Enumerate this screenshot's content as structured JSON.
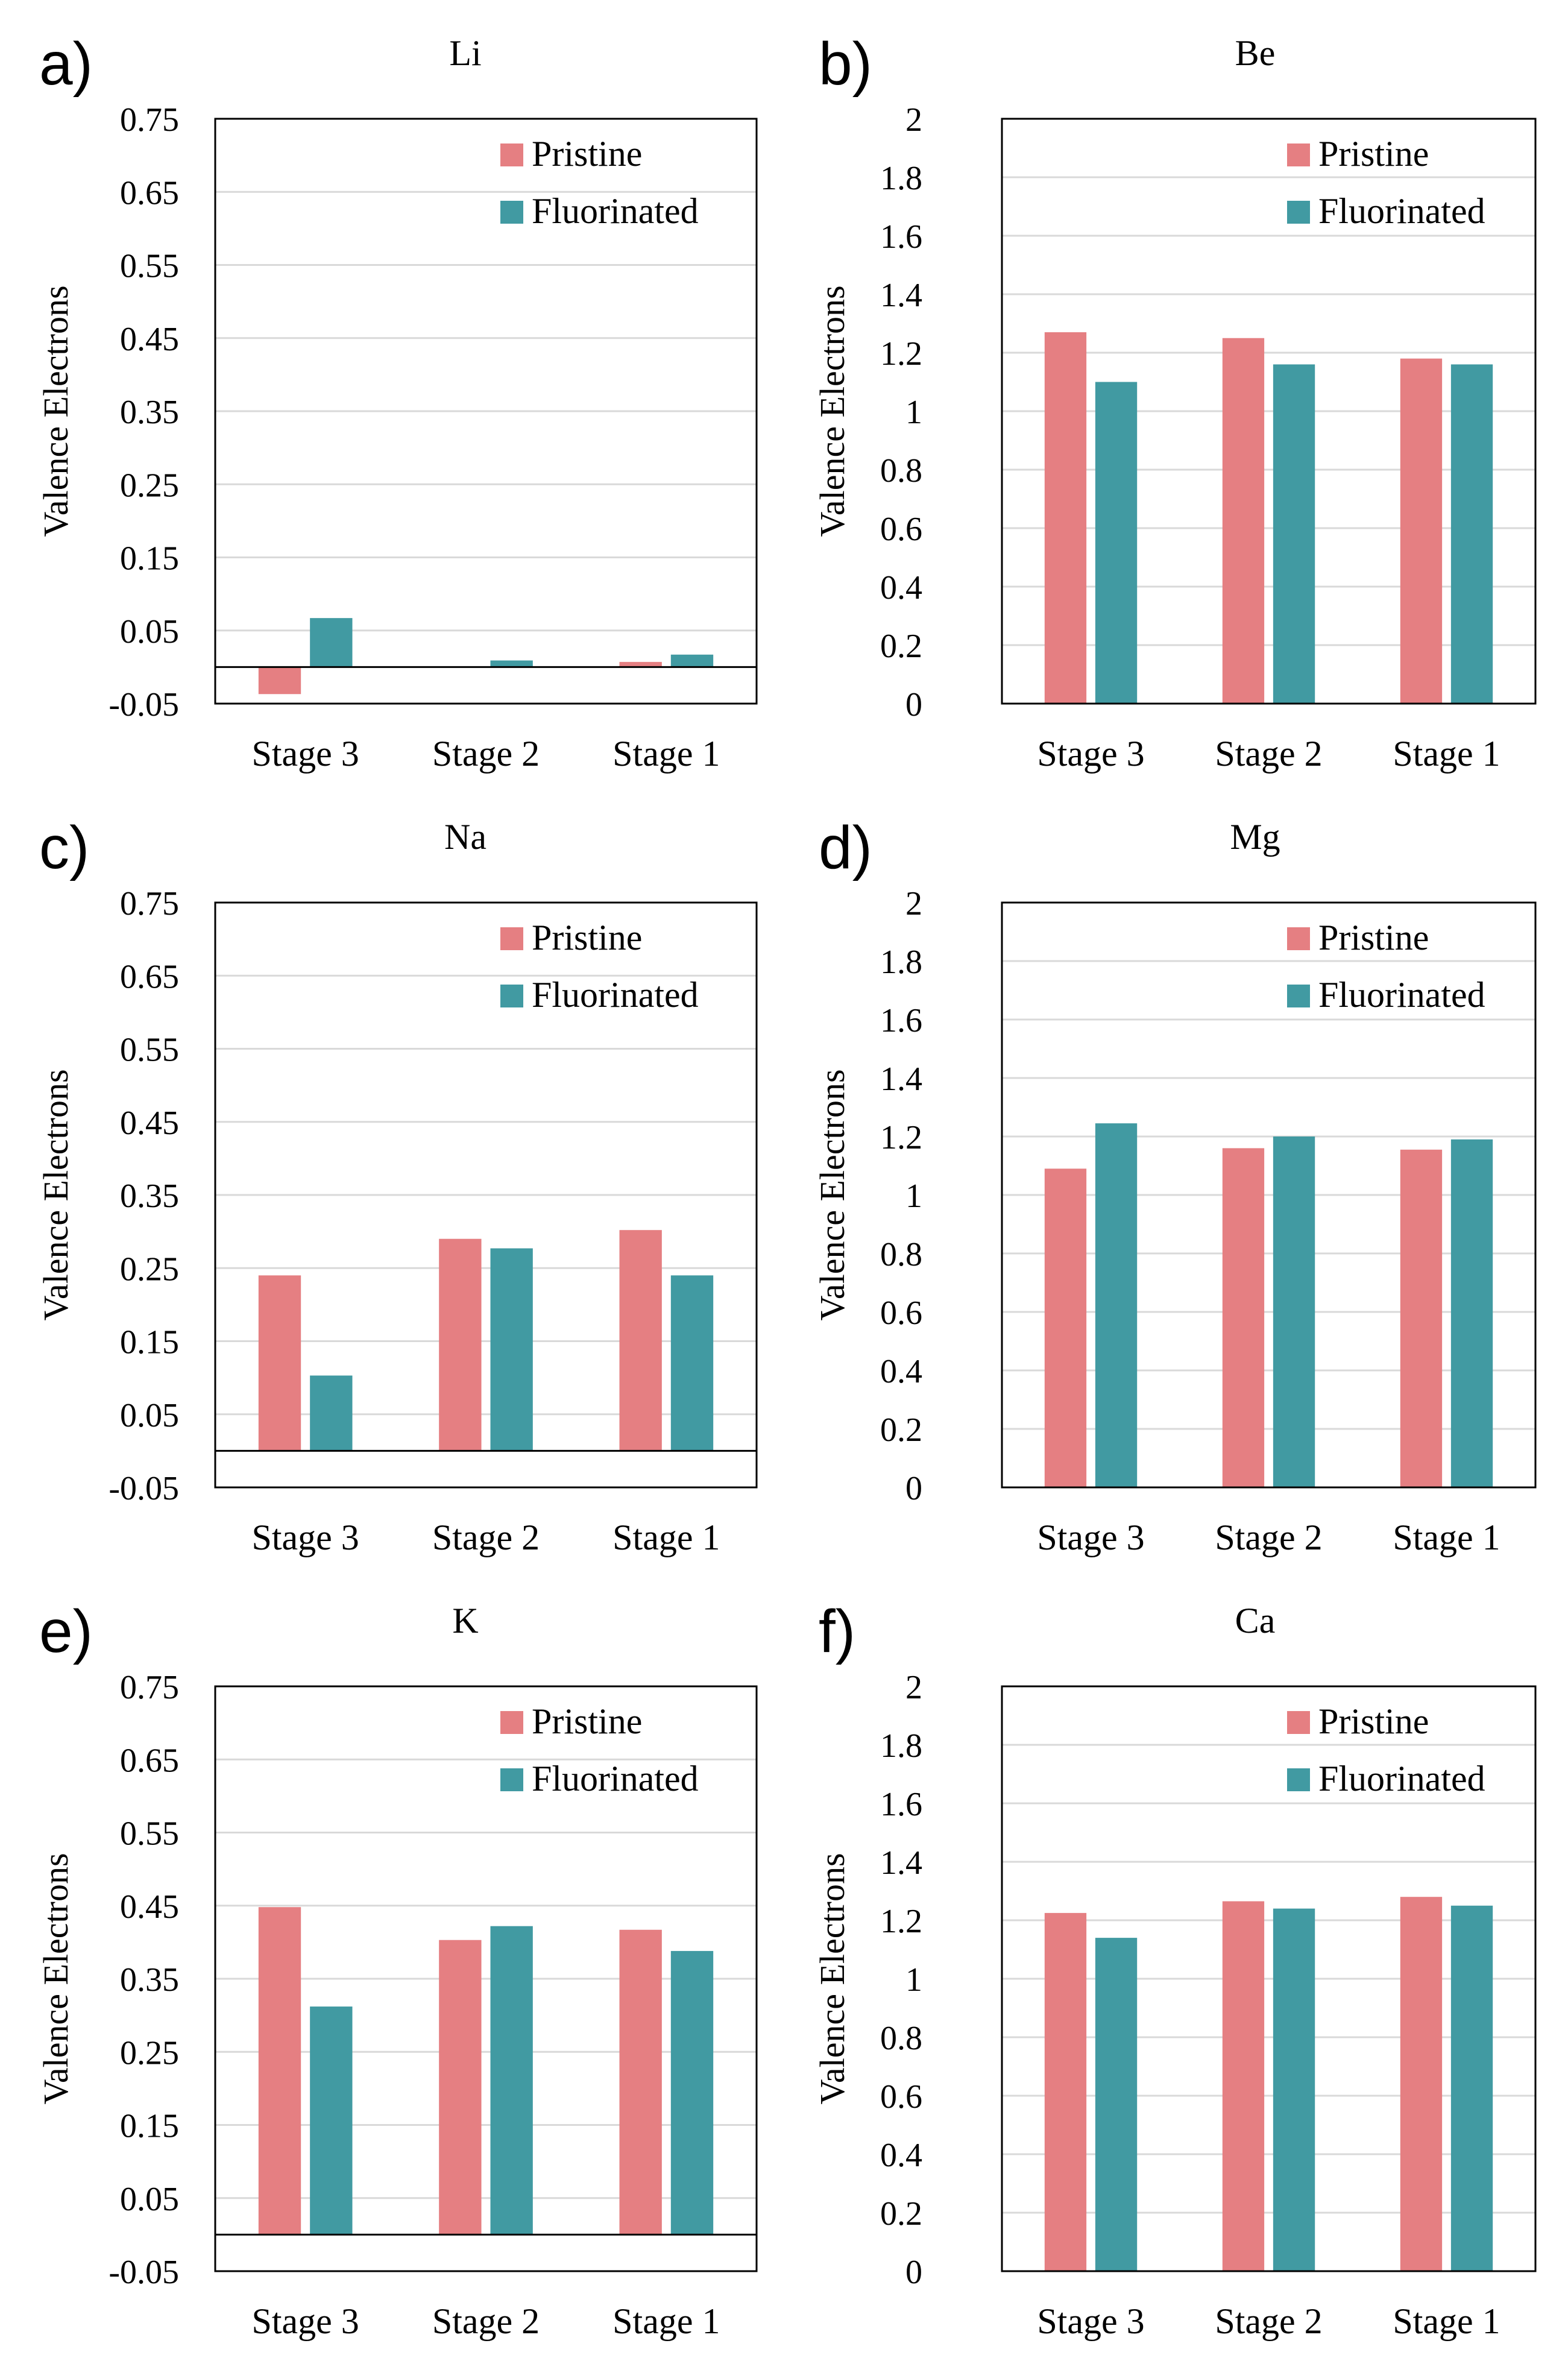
{
  "chart_data": [
    {
      "panel_label": "a)",
      "title": "Li",
      "type": "bar",
      "ylabel": "Valence Electrons",
      "xlabel": "",
      "categories": [
        "Stage 3",
        "Stage 2",
        "Stage 1"
      ],
      "series": [
        {
          "name": "Pristine",
          "color": "#E57F82",
          "values": [
            -0.037,
            0.0,
            0.007
          ]
        },
        {
          "name": "Fluorinated",
          "color": "#419AA2",
          "values": [
            0.067,
            0.009,
            0.017
          ]
        }
      ],
      "ylim": [
        -0.05,
        0.75
      ],
      "yticks": [
        "0.75",
        "0.65",
        "0.55",
        "0.45",
        "0.35",
        "0.25",
        "0.15",
        "0.05",
        "-0.05"
      ],
      "ytick_values": [
        0.75,
        0.65,
        0.55,
        0.45,
        0.35,
        0.25,
        0.15,
        0.05,
        -0.05
      ],
      "grid": true,
      "legend": "top-right"
    },
    {
      "panel_label": "b)",
      "title": "Be",
      "type": "bar",
      "ylabel": "Valence Electrons",
      "xlabel": "",
      "categories": [
        "Stage 3",
        "Stage 2",
        "Stage 1"
      ],
      "series": [
        {
          "name": "Pristine",
          "color": "#E57F82",
          "values": [
            1.27,
            1.25,
            1.18
          ]
        },
        {
          "name": "Fluorinated",
          "color": "#419AA2",
          "values": [
            1.1,
            1.16,
            1.16
          ]
        }
      ],
      "ylim": [
        0,
        2
      ],
      "yticks": [
        "2",
        "1.8",
        "1.6",
        "1.4",
        "1.2",
        "1",
        "0.8",
        "0.6",
        "0.4",
        "0.2",
        "0"
      ],
      "ytick_values": [
        2,
        1.8,
        1.6,
        1.4,
        1.2,
        1,
        0.8,
        0.6,
        0.4,
        0.2,
        0
      ],
      "grid": true,
      "legend": "top-right"
    },
    {
      "panel_label": "c)",
      "title": "Na",
      "type": "bar",
      "ylabel": "Valence Electrons",
      "xlabel": "",
      "categories": [
        "Stage 3",
        "Stage 2",
        "Stage 1"
      ],
      "series": [
        {
          "name": "Pristine",
          "color": "#E57F82",
          "values": [
            0.24,
            0.29,
            0.302
          ]
        },
        {
          "name": "Fluorinated",
          "color": "#419AA2",
          "values": [
            0.103,
            0.277,
            0.24
          ]
        }
      ],
      "ylim": [
        -0.05,
        0.75
      ],
      "yticks": [
        "0.75",
        "0.65",
        "0.55",
        "0.45",
        "0.35",
        "0.25",
        "0.15",
        "0.05",
        "-0.05"
      ],
      "ytick_values": [
        0.75,
        0.65,
        0.55,
        0.45,
        0.35,
        0.25,
        0.15,
        0.05,
        -0.05
      ],
      "grid": true,
      "legend": "top-right"
    },
    {
      "panel_label": "d)",
      "title": "Mg",
      "type": "bar",
      "ylabel": "Valence Electrons",
      "xlabel": "",
      "categories": [
        "Stage 3",
        "Stage 2",
        "Stage 1"
      ],
      "series": [
        {
          "name": "Pristine",
          "color": "#E57F82",
          "values": [
            1.09,
            1.16,
            1.155
          ]
        },
        {
          "name": "Fluorinated",
          "color": "#419AA2",
          "values": [
            1.245,
            1.2,
            1.19
          ]
        }
      ],
      "ylim": [
        0,
        2
      ],
      "yticks": [
        "2",
        "1.8",
        "1.6",
        "1.4",
        "1.2",
        "1",
        "0.8",
        "0.6",
        "0.4",
        "0.2",
        "0"
      ],
      "ytick_values": [
        2,
        1.8,
        1.6,
        1.4,
        1.2,
        1,
        0.8,
        0.6,
        0.4,
        0.2,
        0
      ],
      "grid": true,
      "legend": "top-right"
    },
    {
      "panel_label": "e)",
      "title": "K",
      "type": "bar",
      "ylabel": "Valence Electrons",
      "xlabel": "",
      "categories": [
        "Stage 3",
        "Stage 2",
        "Stage 1"
      ],
      "series": [
        {
          "name": "Pristine",
          "color": "#E57F82",
          "values": [
            0.448,
            0.403,
            0.417
          ]
        },
        {
          "name": "Fluorinated",
          "color": "#419AA2",
          "values": [
            0.312,
            0.422,
            0.388
          ]
        }
      ],
      "ylim": [
        -0.05,
        0.75
      ],
      "yticks": [
        "0.75",
        "0.65",
        "0.55",
        "0.45",
        "0.35",
        "0.25",
        "0.15",
        "0.05",
        "-0.05"
      ],
      "ytick_values": [
        0.75,
        0.65,
        0.55,
        0.45,
        0.35,
        0.25,
        0.15,
        0.05,
        -0.05
      ],
      "grid": true,
      "legend": "top-right"
    },
    {
      "panel_label": "f)",
      "title": "Ca",
      "type": "bar",
      "ylabel": "Valence Electrons",
      "xlabel": "",
      "categories": [
        "Stage 3",
        "Stage 2",
        "Stage 1"
      ],
      "series": [
        {
          "name": "Pristine",
          "color": "#E57F82",
          "values": [
            1.225,
            1.265,
            1.28
          ]
        },
        {
          "name": "Fluorinated",
          "color": "#419AA2",
          "values": [
            1.14,
            1.24,
            1.25
          ]
        }
      ],
      "ylim": [
        0,
        2
      ],
      "yticks": [
        "2",
        "1.8",
        "1.6",
        "1.4",
        "1.2",
        "1",
        "0.8",
        "0.6",
        "0.4",
        "0.2",
        "0"
      ],
      "ytick_values": [
        2,
        1.8,
        1.6,
        1.4,
        1.2,
        1,
        0.8,
        0.6,
        0.4,
        0.2,
        0
      ],
      "grid": true,
      "legend": "top-right"
    }
  ]
}
